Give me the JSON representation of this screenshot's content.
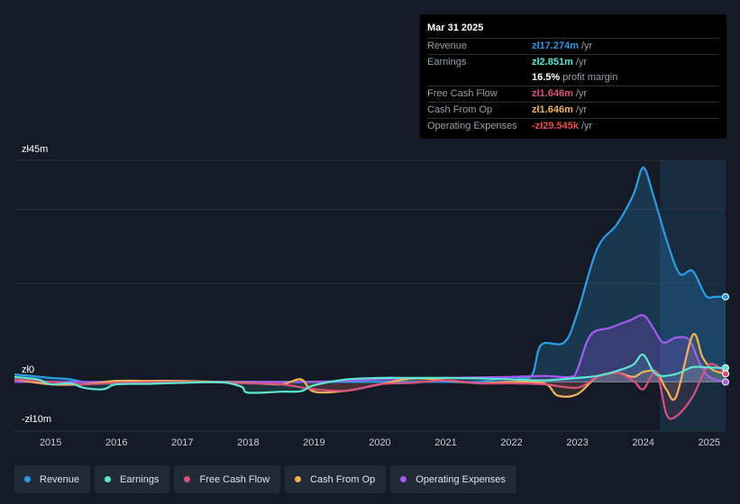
{
  "tooltip": {
    "date": "Mar 31 2025",
    "rows": [
      {
        "label": "Revenue",
        "value": "zł17.274m",
        "unit": "/yr",
        "color": "#2d9ce6"
      },
      {
        "label": "Earnings",
        "value": "zł2.851m",
        "unit": "/yr",
        "color": "#5ee6d3"
      },
      {
        "label": "",
        "value": "16.5%",
        "unit": "profit margin",
        "color": "#ffffff"
      },
      {
        "label": "Free Cash Flow",
        "value": "zł1.646m",
        "unit": "/yr",
        "color": "#d9527e"
      },
      {
        "label": "Cash From Op",
        "value": "zł1.646m",
        "unit": "/yr",
        "color": "#f0b35a"
      },
      {
        "label": "Operating Expenses",
        "value": "-zł29.545k",
        "unit": "/yr",
        "color": "#ef4b4b"
      }
    ]
  },
  "chart_data": {
    "type": "line",
    "y_tick_labels": [
      "zł45m",
      "zł0",
      "-zł10m"
    ],
    "ylim": [
      -10,
      45
    ],
    "xlim": [
      2014.45,
      2025.25
    ],
    "x_tick_labels": [
      "2015",
      "2016",
      "2017",
      "2018",
      "2019",
      "2020",
      "2021",
      "2022",
      "2023",
      "2024",
      "2025"
    ],
    "x_ticks": [
      2015,
      2016,
      2017,
      2018,
      2019,
      2020,
      2021,
      2022,
      2023,
      2024,
      2025
    ],
    "highlight_start": 2024.25,
    "series": [
      {
        "name": "Revenue",
        "color": "#2d9ce6",
        "fill": true,
        "x": [
          2014.45,
          2014.7,
          2015.0,
          2015.3,
          2015.6,
          2016.0,
          2016.5,
          2017.0,
          2017.5,
          2018.0,
          2018.5,
          2019.0,
          2019.5,
          2020.0,
          2020.5,
          2021.0,
          2021.5,
          2022.0,
          2022.3,
          2022.45,
          2022.8,
          2023.0,
          2023.3,
          2023.6,
          2023.85,
          2024.0,
          2024.15,
          2024.35,
          2024.55,
          2024.75,
          2024.95,
          2025.1,
          2025.25
        ],
        "y": [
          1.5,
          1.2,
          0.8,
          0.5,
          -0.3,
          -0.3,
          0.0,
          0.0,
          0.0,
          0.0,
          0.0,
          0.0,
          0.0,
          0.0,
          0.0,
          0.0,
          0.0,
          1.0,
          1.2,
          7.5,
          8.0,
          14.0,
          27.0,
          32.0,
          38.0,
          43.5,
          38.0,
          29.0,
          22.0,
          22.5,
          17.5,
          17.3,
          17.274
        ]
      },
      {
        "name": "Earnings",
        "color": "#5ee6d3",
        "fill": false,
        "x": [
          2014.45,
          2014.8,
          2015.0,
          2015.3,
          2015.5,
          2015.8,
          2016.0,
          2016.5,
          2017.0,
          2017.6,
          2017.9,
          2018.0,
          2018.5,
          2018.8,
          2019.0,
          2019.5,
          2020.0,
          2020.5,
          2021.0,
          2021.5,
          2022.0,
          2022.5,
          2023.0,
          2023.3,
          2023.6,
          2023.85,
          2024.0,
          2024.2,
          2024.5,
          2024.75,
          2025.0,
          2025.25
        ],
        "y": [
          1.0,
          0.5,
          -0.5,
          -0.3,
          -1.2,
          -1.5,
          -0.5,
          -0.4,
          -0.2,
          -0.1,
          -1.0,
          -2.2,
          -2.0,
          -1.9,
          -0.7,
          0.5,
          0.8,
          0.8,
          0.8,
          0.7,
          0.5,
          0.3,
          0.8,
          1.2,
          2.2,
          3.5,
          5.5,
          1.5,
          1.6,
          3.0,
          2.9,
          2.851
        ]
      },
      {
        "name": "Free Cash Flow",
        "color": "#d9527e",
        "fill": false,
        "x": [
          2014.45,
          2015.0,
          2015.5,
          2016.0,
          2016.5,
          2017.0,
          2017.5,
          2018.0,
          2018.5,
          2019.0,
          2019.5,
          2020.0,
          2020.5,
          2021.0,
          2021.5,
          2022.0,
          2022.5,
          2023.0,
          2023.3,
          2023.6,
          2023.85,
          2024.0,
          2024.2,
          2024.35,
          2024.5,
          2024.75,
          2025.0,
          2025.25
        ],
        "y": [
          0.5,
          0.0,
          -0.5,
          -0.2,
          -0.1,
          0.0,
          -0.1,
          -0.3,
          -0.5,
          -1.5,
          -1.8,
          -0.5,
          -0.2,
          0.3,
          -0.3,
          -0.3,
          -0.5,
          -1.2,
          1.0,
          1.8,
          0.2,
          -1.5,
          2.0,
          -6.5,
          -7.0,
          -3.0,
          3.5,
          1.646
        ]
      },
      {
        "name": "Cash From Op",
        "color": "#f0b35a",
        "fill": false,
        "x": [
          2014.45,
          2015.0,
          2015.5,
          2016.0,
          2016.5,
          2017.0,
          2017.5,
          2018.0,
          2018.5,
          2018.8,
          2019.0,
          2019.5,
          2020.0,
          2020.5,
          2021.0,
          2021.5,
          2022.0,
          2022.5,
          2022.7,
          2023.0,
          2023.3,
          2023.6,
          2023.85,
          2024.0,
          2024.2,
          2024.35,
          2024.5,
          2024.75,
          2024.9,
          2025.05,
          2025.25
        ],
        "y": [
          0.5,
          -0.5,
          -0.5,
          0.2,
          0.2,
          0.2,
          0.0,
          -0.2,
          -0.5,
          0.5,
          -2.0,
          -1.8,
          -0.5,
          0.7,
          0.3,
          -0.3,
          0.0,
          -0.3,
          -2.8,
          -2.5,
          1.0,
          1.8,
          1.0,
          2.0,
          2.0,
          -1.5,
          -3.0,
          9.5,
          5.0,
          2.5,
          1.646
        ]
      },
      {
        "name": "Operating Expenses",
        "color": "#a35cf0",
        "fill": true,
        "x": [
          2014.45,
          2015.0,
          2016.0,
          2017.0,
          2018.0,
          2019.0,
          2020.0,
          2021.0,
          2022.0,
          2022.5,
          2022.9,
          2023.0,
          2023.2,
          2023.5,
          2023.8,
          2024.0,
          2024.15,
          2024.3,
          2024.5,
          2024.7,
          2024.85,
          2025.0,
          2025.25
        ],
        "y": [
          0.0,
          0.0,
          0.0,
          0.0,
          0.0,
          0.0,
          0.5,
          0.8,
          1.0,
          1.2,
          1.0,
          2.5,
          9.5,
          11.0,
          12.5,
          13.5,
          11.0,
          8.0,
          9.0,
          8.5,
          4.0,
          1.0,
          -0.029545
        ]
      }
    ]
  },
  "legend": [
    {
      "label": "Revenue",
      "color": "#2d9ce6"
    },
    {
      "label": "Earnings",
      "color": "#5ee6d3"
    },
    {
      "label": "Free Cash Flow",
      "color": "#d9527e"
    },
    {
      "label": "Cash From Op",
      "color": "#f0b35a"
    },
    {
      "label": "Operating Expenses",
      "color": "#a35cf0"
    }
  ]
}
